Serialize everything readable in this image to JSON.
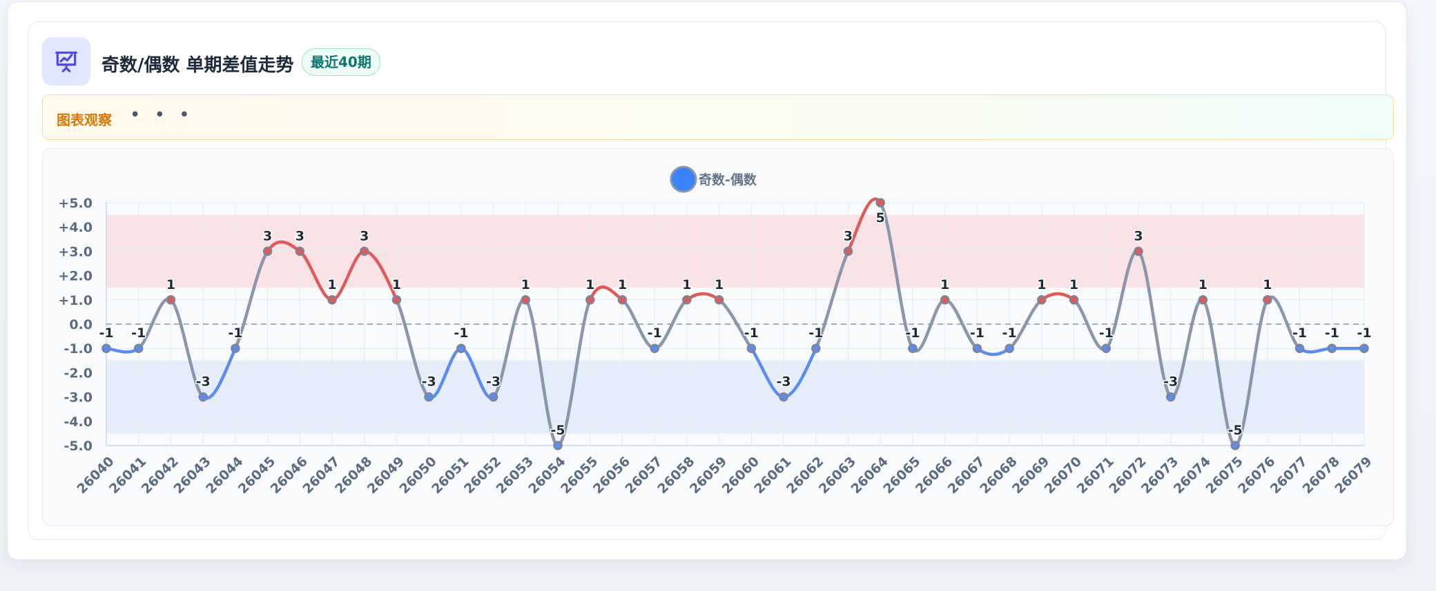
{
  "header": {
    "title": "奇数/偶数 单期差值走势",
    "badge": "最近40期",
    "icon": "presentation-chart-icon"
  },
  "observation": {
    "label": "图表观察",
    "more": "• • •"
  },
  "colors": {
    "accent": "#6366f1",
    "positive": "#e05a5a",
    "negative": "#5b8def",
    "neutral": "#8996ab",
    "upper_band": "#f9e3e6",
    "lower_band": "#e5edfb"
  },
  "chart_data": {
    "type": "line",
    "title": "",
    "xlabel": "",
    "ylabel": "",
    "ylim": [
      -5,
      5
    ],
    "ytick_labels": [
      "+5.0",
      "+4.0",
      "+3.0",
      "+2.0",
      "+1.0",
      "0.0",
      "-1.0",
      "-2.0",
      "-3.0",
      "-4.0",
      "-5.0"
    ],
    "categories": [
      "26040",
      "26041",
      "26042",
      "26043",
      "26044",
      "26045",
      "26046",
      "26047",
      "26048",
      "26049",
      "26050",
      "26051",
      "26052",
      "26053",
      "26054",
      "26055",
      "26056",
      "26057",
      "26058",
      "26059",
      "26060",
      "26061",
      "26062",
      "26063",
      "26064",
      "26065",
      "26066",
      "26067",
      "26068",
      "26069",
      "26070",
      "26071",
      "26072",
      "26073",
      "26074",
      "26075",
      "26076",
      "26077",
      "26078",
      "26079"
    ],
    "series": [
      {
        "name": "奇数-偶数",
        "values": [
          -1,
          -1,
          1,
          -3,
          -1,
          3,
          3,
          1,
          3,
          1,
          -3,
          -1,
          -3,
          1,
          -5,
          1,
          1,
          -1,
          1,
          1,
          -1,
          -3,
          -1,
          3,
          5,
          -1,
          1,
          -1,
          -1,
          1,
          1,
          -1,
          3,
          -3,
          1,
          -5,
          1,
          -1,
          -1,
          -1
        ]
      }
    ],
    "bands": [
      {
        "from": 1.5,
        "to": 4.5,
        "color": "#f9e3e6"
      },
      {
        "from": -4.5,
        "to": -1.5,
        "color": "#e5edfb"
      }
    ],
    "reference_line": 0,
    "grid": true,
    "legend": "top-center"
  }
}
